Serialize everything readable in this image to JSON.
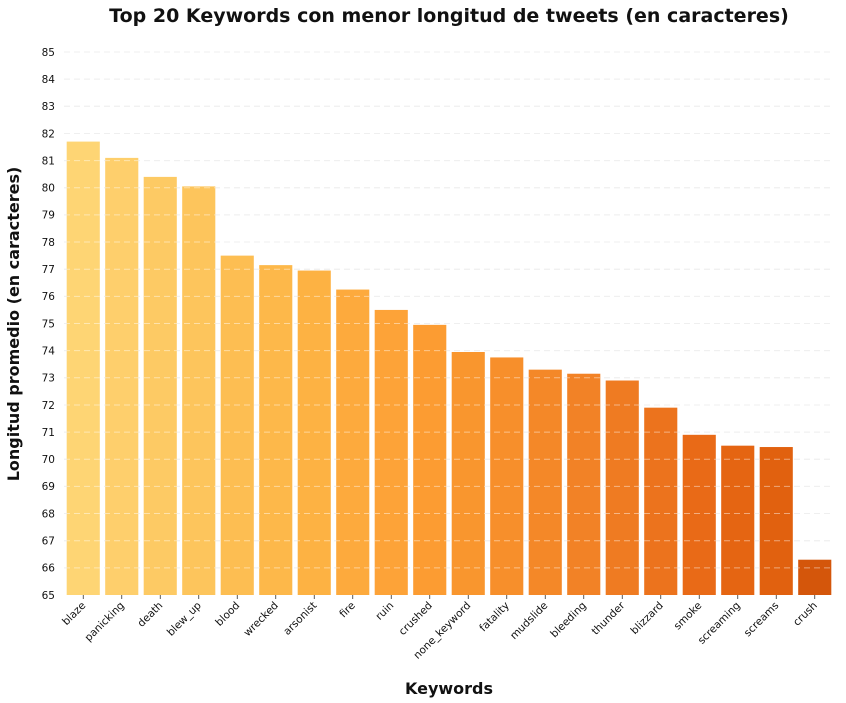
{
  "chart_data": {
    "type": "bar",
    "title": "Top 20 Keywords con menor longitud de tweets (en caracteres)",
    "xlabel": "Keywords",
    "ylabel": "Longitud promedio (en caracteres)",
    "ylim": [
      65,
      85
    ],
    "yticks": [
      65,
      66,
      67,
      68,
      69,
      70,
      71,
      72,
      73,
      74,
      75,
      76,
      77,
      78,
      79,
      80,
      81,
      82,
      83,
      84,
      85
    ],
    "grid": "horizontal dashed",
    "categories": [
      "blaze",
      "panicking",
      "death",
      "blew_up",
      "blood",
      "wrecked",
      "arsonist",
      "fire",
      "ruin",
      "crushed",
      "none_keyword",
      "fatality",
      "mudslide",
      "bleeding",
      "thunder",
      "blizzard",
      "smoke",
      "screaming",
      "screams",
      "crush"
    ],
    "values": [
      81.7,
      81.1,
      80.4,
      80.05,
      77.5,
      77.15,
      76.95,
      76.25,
      75.5,
      74.95,
      73.95,
      73.75,
      73.3,
      73.15,
      72.9,
      71.9,
      70.9,
      70.5,
      70.45,
      66.3
    ],
    "colors": [
      "#fed574",
      "#fecf6c",
      "#fdca64",
      "#fdc55c",
      "#fdbe52",
      "#fdb84a",
      "#fdb243",
      "#fdaa3d",
      "#fda338",
      "#fc9c32",
      "#f9962e",
      "#f78f2b",
      "#f48828",
      "#f28226",
      "#ef7b22",
      "#ec731d",
      "#e96a17",
      "#e56512",
      "#e1610f",
      "#d4560b"
    ]
  }
}
